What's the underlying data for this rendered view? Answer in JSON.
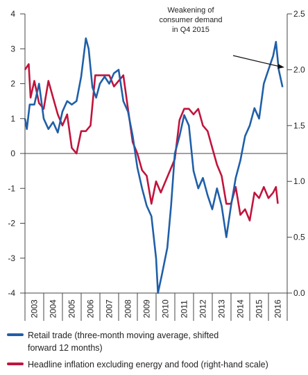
{
  "chart_data": {
    "type": "line",
    "annotation": [
      "Weakening of",
      "consumer demand",
      "in Q4 2015"
    ],
    "xlim": [
      2003,
      2017
    ],
    "xticks": [
      2003,
      2004,
      2005,
      2006,
      2007,
      2008,
      2009,
      2010,
      2011,
      2012,
      2013,
      2014,
      2015,
      2016
    ],
    "ylim": [
      -4,
      4
    ],
    "yticks": [
      4,
      3,
      2,
      1,
      0,
      -1,
      -2,
      -3,
      -4
    ],
    "y2lim": [
      0,
      2.5
    ],
    "y2ticks": [
      2.5,
      {
        "value": 2,
        "label": "2.0"
      },
      1.5,
      {
        "value": 1,
        "label": "1.0"
      },
      0.5,
      {
        "value": 0,
        "label": "0.0"
      }
    ],
    "series": [
      {
        "name": "Retail trade (three-month moving average, shifted forward 12 months)",
        "color": "#1f5fa8",
        "axis": "y",
        "x": [
          2003.0,
          2003.1,
          2003.25,
          2003.5,
          2003.75,
          2004.0,
          2004.25,
          2004.5,
          2004.75,
          2005.0,
          2005.25,
          2005.5,
          2005.75,
          2006.0,
          2006.25,
          2006.4,
          2006.6,
          2006.8,
          2007.0,
          2007.25,
          2007.5,
          2007.75,
          2008.0,
          2008.25,
          2008.5,
          2008.75,
          2009.0,
          2009.25,
          2009.5,
          2009.75,
          2010.0,
          2010.1,
          2010.3,
          2010.6,
          2010.8,
          2011.0,
          2011.25,
          2011.5,
          2011.75,
          2012.0,
          2012.25,
          2012.5,
          2012.75,
          2013.0,
          2013.25,
          2013.5,
          2013.75,
          2014.0,
          2014.25,
          2014.5,
          2014.75,
          2015.0,
          2015.25,
          2015.5,
          2015.75,
          2016.0,
          2016.25,
          2016.4,
          2016.55,
          2016.75
        ],
        "values": [
          1.0,
          0.7,
          1.4,
          1.4,
          2.0,
          1.0,
          0.7,
          0.9,
          0.6,
          1.2,
          1.5,
          1.4,
          1.5,
          2.2,
          3.3,
          3.0,
          1.9,
          1.6,
          2.0,
          2.2,
          2.0,
          2.3,
          2.4,
          1.5,
          1.2,
          0.5,
          -0.4,
          -1.0,
          -1.5,
          -1.8,
          -3.0,
          -4.0,
          -3.5,
          -2.7,
          -1.5,
          0.0,
          0.5,
          1.1,
          0.8,
          -0.5,
          -1.0,
          -0.7,
          -1.2,
          -1.6,
          -1.0,
          -1.5,
          -2.4,
          -1.5,
          -0.7,
          -0.2,
          0.5,
          0.8,
          1.3,
          1.0,
          2.0,
          2.4,
          2.8,
          3.2,
          2.4,
          1.9
        ]
      },
      {
        "name": "Headline inflation excluding energy and food (right-hand scale)",
        "color": "#c0143c",
        "axis": "y2",
        "x": [
          2003.0,
          2003.2,
          2003.3,
          2003.5,
          2003.75,
          2004.0,
          2004.25,
          2004.5,
          2004.75,
          2005.0,
          2005.25,
          2005.5,
          2005.75,
          2006.0,
          2006.25,
          2006.5,
          2006.75,
          2007.0,
          2007.5,
          2007.75,
          2008.0,
          2008.25,
          2008.5,
          2008.75,
          2009.0,
          2009.25,
          2009.5,
          2009.75,
          2010.0,
          2010.25,
          2010.5,
          2010.75,
          2011.0,
          2011.25,
          2011.5,
          2011.75,
          2012.0,
          2012.25,
          2012.5,
          2012.75,
          2013.0,
          2013.25,
          2013.5,
          2013.75,
          2014.0,
          2014.25,
          2014.5,
          2014.75,
          2015.0,
          2015.25,
          2015.5,
          2015.75,
          2016.0,
          2016.25,
          2016.4,
          2016.5
        ],
        "values": [
          2.0,
          2.05,
          1.75,
          1.9,
          1.7,
          1.65,
          1.9,
          1.75,
          1.6,
          1.5,
          1.6,
          1.3,
          1.25,
          1.45,
          1.45,
          1.5,
          1.95,
          1.95,
          1.95,
          1.85,
          1.9,
          1.95,
          1.65,
          1.35,
          1.25,
          1.1,
          1.05,
          0.8,
          1.0,
          0.9,
          1.0,
          1.1,
          1.2,
          1.55,
          1.65,
          1.65,
          1.6,
          1.65,
          1.5,
          1.45,
          1.3,
          1.15,
          1.05,
          0.8,
          0.8,
          0.95,
          0.7,
          0.75,
          0.65,
          0.9,
          0.85,
          0.95,
          0.85,
          0.9,
          0.95,
          0.8
        ]
      }
    ]
  }
}
